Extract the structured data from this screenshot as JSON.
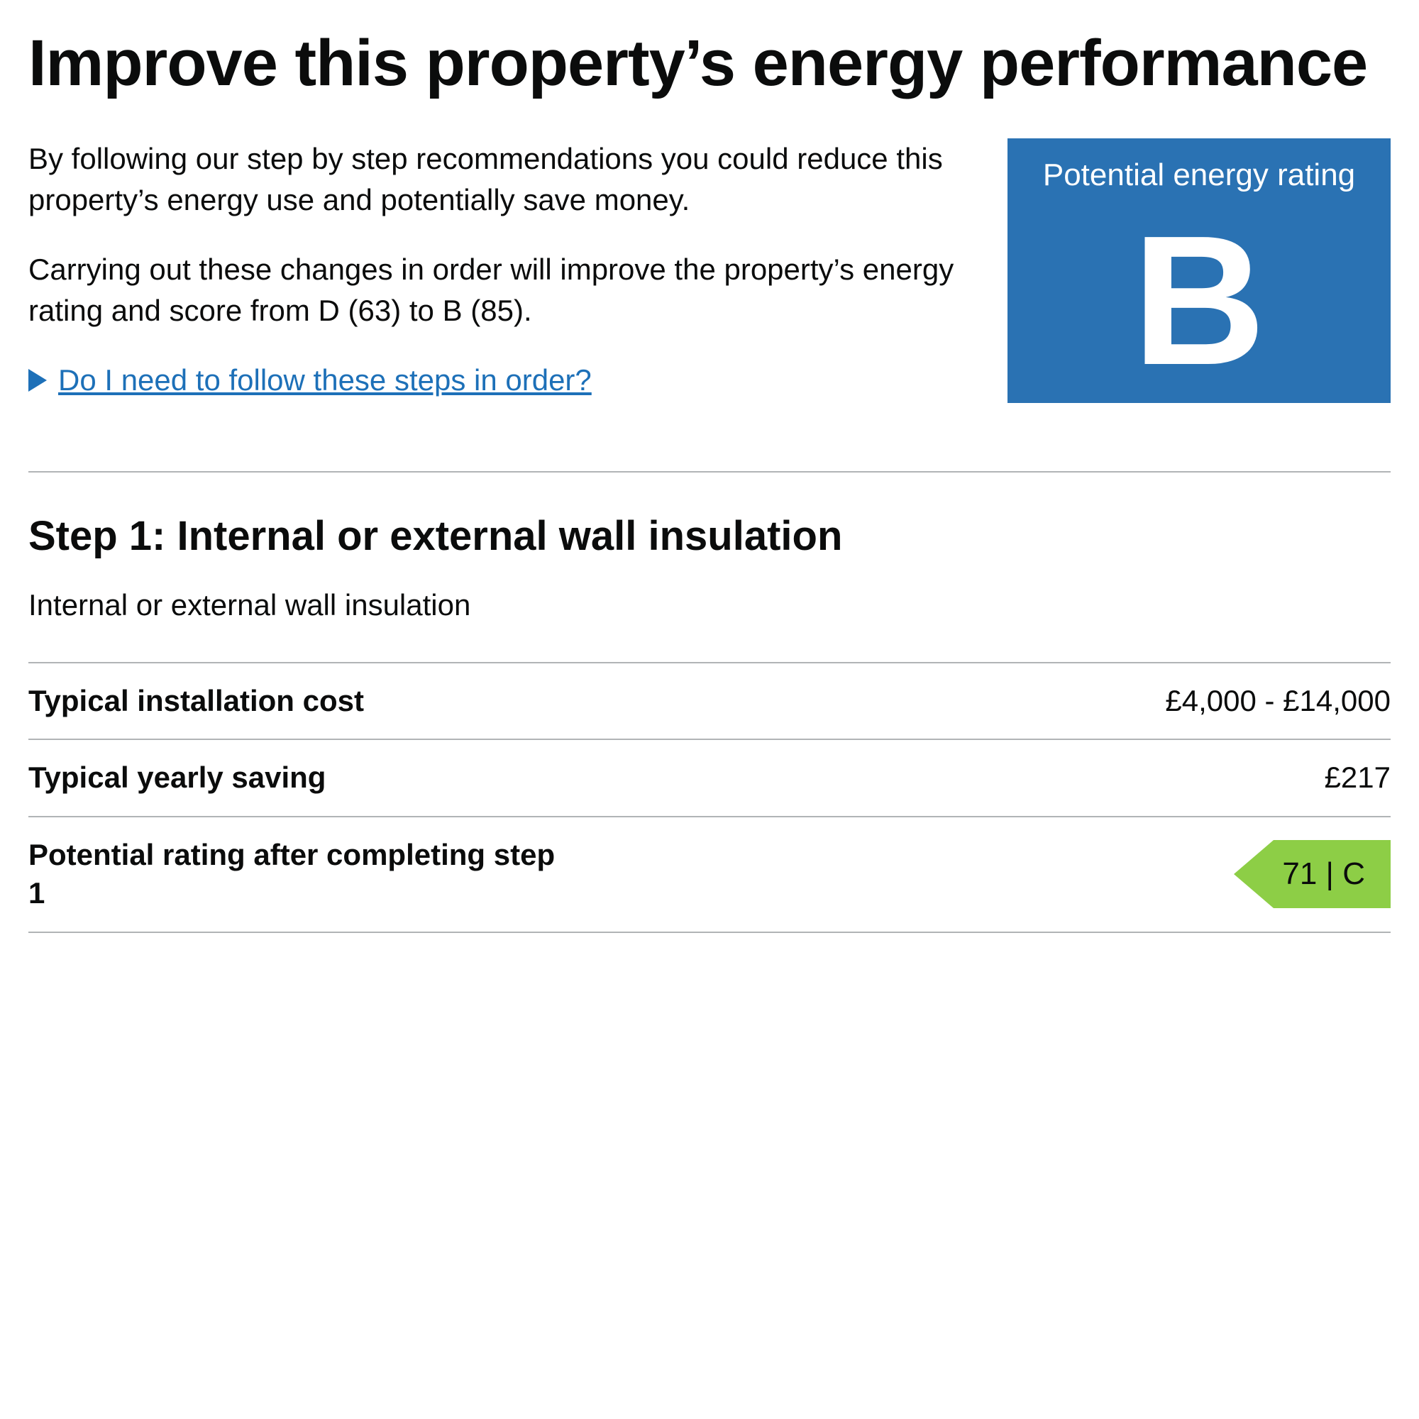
{
  "heading": "Improve this property’s energy performance",
  "intro": {
    "p1": "By following our step by step recommendations you could reduce this property’s energy use and potentially save money.",
    "p2": "Carrying out these changes in order will improve the property’s energy rating and score from D (63) to B (85).",
    "details_link": "Do I need to follow these steps in order?"
  },
  "rating_badge": {
    "label": "Potential energy rating",
    "letter": "B",
    "bg_color": "#2a72b3",
    "text_color": "#ffffff"
  },
  "step1": {
    "heading": "Step 1: Internal or external wall insulation",
    "description": "Internal or external wall insulation",
    "rows": {
      "install_cost_label": "Typical installation cost",
      "install_cost_value": "£4,000 - £14,000",
      "yearly_saving_label": "Typical yearly saving",
      "yearly_saving_value": "£217",
      "potential_rating_label": "Potential rating after completing step 1",
      "potential_rating_value": "71 | C",
      "potential_rating_color": "#8dce46"
    }
  },
  "colors": {
    "link": "#1d70b8",
    "divider": "#b1b4b6",
    "text": "#0b0c0c"
  }
}
